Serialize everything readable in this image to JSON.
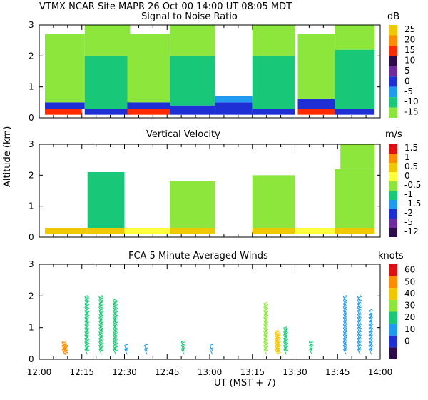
{
  "header": {
    "line1": "VTMX   NCAR Site   MAPR 26 Oct 00   14:00 UT   08:05   MDT"
  },
  "y_axis_label": "Altitude (km)",
  "x_axis": {
    "label": "UT   (MST + 7)",
    "tick_labels": [
      "12:00",
      "12:15",
      "12:30",
      "12:45",
      "13:00",
      "13:15",
      "13:30",
      "13:45",
      "14:00"
    ],
    "range_minutes": [
      0,
      120
    ]
  },
  "panels": [
    {
      "title": "Signal to Noise Ratio",
      "unit": "dB",
      "y_ticks": [
        "0",
        "1",
        "2",
        "3"
      ],
      "colorbar": {
        "labels": [
          "25",
          "20",
          "15",
          "10",
          "5",
          "0",
          "-5",
          "-10",
          "-15"
        ],
        "colors": [
          "#f0c800",
          "#ff8c00",
          "#ff2a00",
          "#2d0a4a",
          "#6f2aa0",
          "#1f2fd6",
          "#1e9bf0",
          "#18c878",
          "#8ce63c"
        ]
      }
    },
    {
      "title": "Vertical Velocity",
      "unit": "m/s",
      "y_ticks": [
        "0",
        "1",
        "2",
        "3"
      ],
      "colorbar": {
        "labels": [
          "1.5",
          "1",
          "0.5",
          "0",
          "-0.5",
          "-1",
          "-1.5",
          "-2",
          "-5",
          "-12"
        ],
        "colors": [
          "#e01010",
          "#ff8c00",
          "#f0c800",
          "#ffff3c",
          "#8ce63c",
          "#18c878",
          "#1e9bf0",
          "#1f2fd6",
          "#6f2aa0",
          "#2d0a4a"
        ]
      }
    },
    {
      "title": "FCA 5 Minute Averaged Winds",
      "unit": "knots",
      "y_ticks": [
        "0",
        "1",
        "2",
        "3"
      ],
      "colorbar": {
        "labels": [
          "60",
          "50",
          "40",
          "30",
          "20",
          "10",
          "0"
        ],
        "colors": [
          "#e01010",
          "#ff8c00",
          "#f0c800",
          "#8ce63c",
          "#18c878",
          "#1e9bf0",
          "#1f2fd6",
          "#2d0a4a"
        ]
      }
    }
  ],
  "chart_data": [
    {
      "type": "heatmap",
      "title": "Signal to Noise Ratio",
      "xlabel": "UT (MST + 7)",
      "ylabel": "Altitude (km)",
      "xlim_minutes": [
        0,
        120
      ],
      "ylim": [
        0,
        3
      ],
      "units": "dB",
      "regions": [
        {
          "x": [
            2,
            15
          ],
          "y": [
            0.1,
            0.3
          ],
          "c": 2
        },
        {
          "x": [
            2,
            16
          ],
          "y": [
            0.3,
            0.5
          ],
          "c": 5
        },
        {
          "x": [
            2,
            16
          ],
          "y": [
            0.5,
            2.7
          ],
          "c": 8
        },
        {
          "x": [
            16,
            32
          ],
          "y": [
            0.1,
            0.3
          ],
          "c": 5
        },
        {
          "x": [
            16,
            32
          ],
          "y": [
            0.3,
            2.0
          ],
          "c": 7
        },
        {
          "x": [
            16,
            32
          ],
          "y": [
            2.0,
            3.0
          ],
          "c": 8
        },
        {
          "x": [
            31,
            46
          ],
          "y": [
            0.1,
            0.3
          ],
          "c": 2
        },
        {
          "x": [
            31,
            46
          ],
          "y": [
            0.3,
            0.5
          ],
          "c": 5
        },
        {
          "x": [
            31,
            46
          ],
          "y": [
            0.5,
            2.7
          ],
          "c": 8
        },
        {
          "x": [
            46,
            62
          ],
          "y": [
            0.1,
            0.4
          ],
          "c": 5
        },
        {
          "x": [
            46,
            62
          ],
          "y": [
            0.4,
            2.0
          ],
          "c": 7
        },
        {
          "x": [
            46,
            62
          ],
          "y": [
            2.0,
            3.0
          ],
          "c": 8
        },
        {
          "x": [
            62,
            75
          ],
          "y": [
            0.1,
            0.5
          ],
          "c": 5
        },
        {
          "x": [
            62,
            75
          ],
          "y": [
            0.5,
            0.7
          ],
          "c": 6
        },
        {
          "x": [
            75,
            90
          ],
          "y": [
            0.1,
            0.3
          ],
          "c": 5
        },
        {
          "x": [
            75,
            90
          ],
          "y": [
            0.3,
            2.0
          ],
          "c": 7
        },
        {
          "x": [
            75,
            90
          ],
          "y": [
            2.0,
            3.0
          ],
          "c": 8
        },
        {
          "x": [
            91,
            104
          ],
          "y": [
            0.1,
            0.3
          ],
          "c": 2
        },
        {
          "x": [
            91,
            104
          ],
          "y": [
            0.3,
            0.6
          ],
          "c": 5
        },
        {
          "x": [
            91,
            104
          ],
          "y": [
            0.6,
            2.7
          ],
          "c": 8
        },
        {
          "x": [
            104,
            118
          ],
          "y": [
            0.1,
            0.3
          ],
          "c": 5
        },
        {
          "x": [
            104,
            118
          ],
          "y": [
            0.3,
            2.2
          ],
          "c": 7
        },
        {
          "x": [
            104,
            118
          ],
          "y": [
            2.2,
            3.0
          ],
          "c": 8
        }
      ]
    },
    {
      "type": "heatmap",
      "title": "Vertical Velocity",
      "xlabel": "UT (MST + 7)",
      "ylabel": "Altitude (km)",
      "xlim_minutes": [
        0,
        120
      ],
      "ylim": [
        0,
        3
      ],
      "units": "m/s",
      "regions": [
        {
          "x": [
            2,
            17
          ],
          "y": [
            0.1,
            0.3
          ],
          "c": 2
        },
        {
          "x": [
            17,
            30
          ],
          "y": [
            0.1,
            0.3
          ],
          "c": 2
        },
        {
          "x": [
            17,
            30
          ],
          "y": [
            0.3,
            2.1
          ],
          "c": 5
        },
        {
          "x": [
            30,
            46
          ],
          "y": [
            0.1,
            0.3
          ],
          "c": 3
        },
        {
          "x": [
            46,
            62
          ],
          "y": [
            0.1,
            0.3
          ],
          "c": 2
        },
        {
          "x": [
            46,
            62
          ],
          "y": [
            0.3,
            1.8
          ],
          "c": 4
        },
        {
          "x": [
            75,
            90
          ],
          "y": [
            0.1,
            0.3
          ],
          "c": 2
        },
        {
          "x": [
            75,
            90
          ],
          "y": [
            0.3,
            2.0
          ],
          "c": 4
        },
        {
          "x": [
            90,
            104
          ],
          "y": [
            0.1,
            0.3
          ],
          "c": 3
        },
        {
          "x": [
            104,
            118
          ],
          "y": [
            0.1,
            0.3
          ],
          "c": 2
        },
        {
          "x": [
            104,
            118
          ],
          "y": [
            0.3,
            2.2
          ],
          "c": 4
        },
        {
          "x": [
            106,
            118
          ],
          "y": [
            2.2,
            3.0
          ],
          "c": 4
        }
      ]
    },
    {
      "type": "scatter",
      "title": "FCA 5 Minute Averaged Winds",
      "xlabel": "UT (MST + 7)",
      "ylabel": "Altitude (km)",
      "xlim_minutes": [
        0,
        120
      ],
      "ylim": [
        0,
        3
      ],
      "units": "knots",
      "wind_barb_columns": [
        {
          "t": 9,
          "speeds_kt": [
            55,
            55,
            55
          ]
        },
        {
          "t": 17,
          "speeds_kt": [
            25,
            25,
            25,
            25,
            25,
            25,
            25,
            25,
            25,
            25,
            25,
            25,
            25,
            25,
            25,
            25
          ]
        },
        {
          "t": 22,
          "speeds_kt": [
            25,
            25,
            25,
            25,
            25,
            25,
            25,
            25,
            25,
            25,
            25,
            25,
            25,
            25,
            25,
            25
          ]
        },
        {
          "t": 27,
          "speeds_kt": [
            25,
            25,
            25,
            25,
            25,
            25,
            25,
            25,
            25,
            25,
            25,
            25,
            25,
            25,
            25
          ]
        },
        {
          "t": 31,
          "speeds_kt": [
            15,
            10
          ]
        },
        {
          "t": 38,
          "speeds_kt": [
            10,
            10
          ]
        },
        {
          "t": 51,
          "speeds_kt": [
            20,
            20,
            20
          ]
        },
        {
          "t": 61,
          "speeds_kt": [
            10,
            10
          ]
        },
        {
          "t": 80,
          "speeds_kt": [
            30,
            30,
            30,
            30,
            30,
            30,
            30,
            30,
            30,
            30,
            30,
            30,
            30,
            30
          ]
        },
        {
          "t": 84,
          "speeds_kt": [
            45,
            45,
            45,
            45,
            45,
            45
          ]
        },
        {
          "t": 87,
          "speeds_kt": [
            25,
            25,
            25,
            25,
            25,
            25,
            25
          ]
        },
        {
          "t": 96,
          "speeds_kt": [
            20,
            20,
            20
          ]
        },
        {
          "t": 108,
          "speeds_kt": [
            15,
            15,
            15,
            15,
            15,
            15,
            15,
            15,
            15,
            15,
            15,
            15,
            15,
            15,
            15,
            15
          ]
        },
        {
          "t": 113,
          "speeds_kt": [
            15,
            15,
            15,
            15,
            15,
            15,
            15,
            15,
            15,
            15,
            15,
            15,
            15,
            15,
            15,
            15
          ]
        },
        {
          "t": 117,
          "speeds_kt": [
            15,
            15,
            15,
            15,
            15,
            15,
            15,
            15,
            15,
            15,
            15,
            15
          ]
        }
      ]
    }
  ]
}
